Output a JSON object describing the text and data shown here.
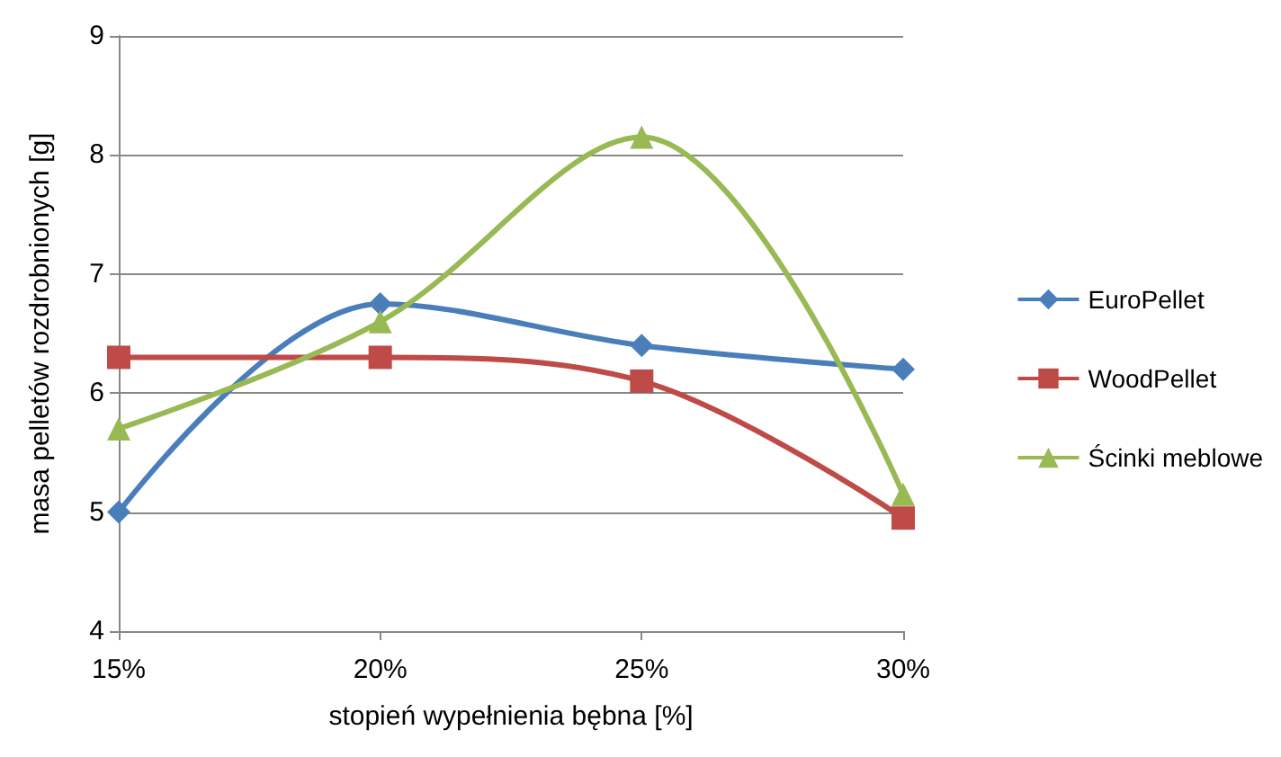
{
  "chart_data": {
    "type": "line",
    "xlabel": "stopień wypełnienia bębna [%]",
    "ylabel": "masa pelletów rozdrobnionych [g]",
    "categories": [
      "15%",
      "20%",
      "25%",
      "30%"
    ],
    "series": [
      {
        "name": "EuroPellet",
        "color": "#4a7ebb",
        "marker": "diamond",
        "values": [
          5.0,
          6.75,
          6.4,
          6.2
        ]
      },
      {
        "name": "WoodPellet",
        "color": "#be4b48",
        "marker": "square",
        "values": [
          6.3,
          6.3,
          6.1,
          4.95
        ]
      },
      {
        "name": "Ścinki meblowe",
        "color": "#98b954",
        "marker": "triangle",
        "values": [
          5.7,
          6.6,
          8.15,
          5.15
        ]
      }
    ],
    "ylim": [
      4,
      9
    ],
    "yticks": [
      4,
      5,
      6,
      7,
      8,
      9
    ],
    "grid": "y",
    "legend": "right"
  }
}
